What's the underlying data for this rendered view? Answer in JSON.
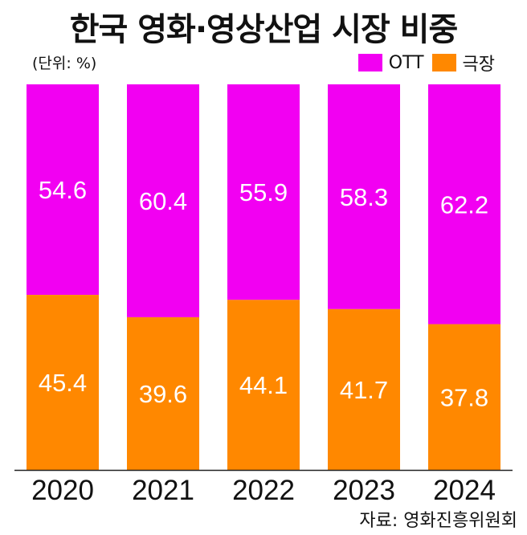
{
  "title": "한국 영화·영상산업 시장 비중",
  "unit": "(단위: %)",
  "source": "자료: 영화진흥위원회",
  "colors": {
    "ott": "#f200f2",
    "theater": "#ff8800",
    "axis": "#222222",
    "label": "#ffffff"
  },
  "legend": [
    {
      "label": "OTT",
      "color": "#f200f2"
    },
    {
      "label": "극장",
      "color": "#ff8800"
    }
  ],
  "chart_data": {
    "type": "bar",
    "stacked": true,
    "categories": [
      "2020",
      "2021",
      "2022",
      "2023",
      "2024"
    ],
    "series": [
      {
        "name": "극장",
        "values": [
          45.4,
          39.6,
          44.1,
          41.7,
          37.8
        ]
      },
      {
        "name": "OTT",
        "values": [
          54.6,
          60.4,
          55.9,
          58.3,
          62.2
        ]
      }
    ],
    "title": "한국 영화·영상산업 시장 비중",
    "ylim": [
      0,
      100
    ],
    "grid": false,
    "legend_position": "top-right"
  }
}
